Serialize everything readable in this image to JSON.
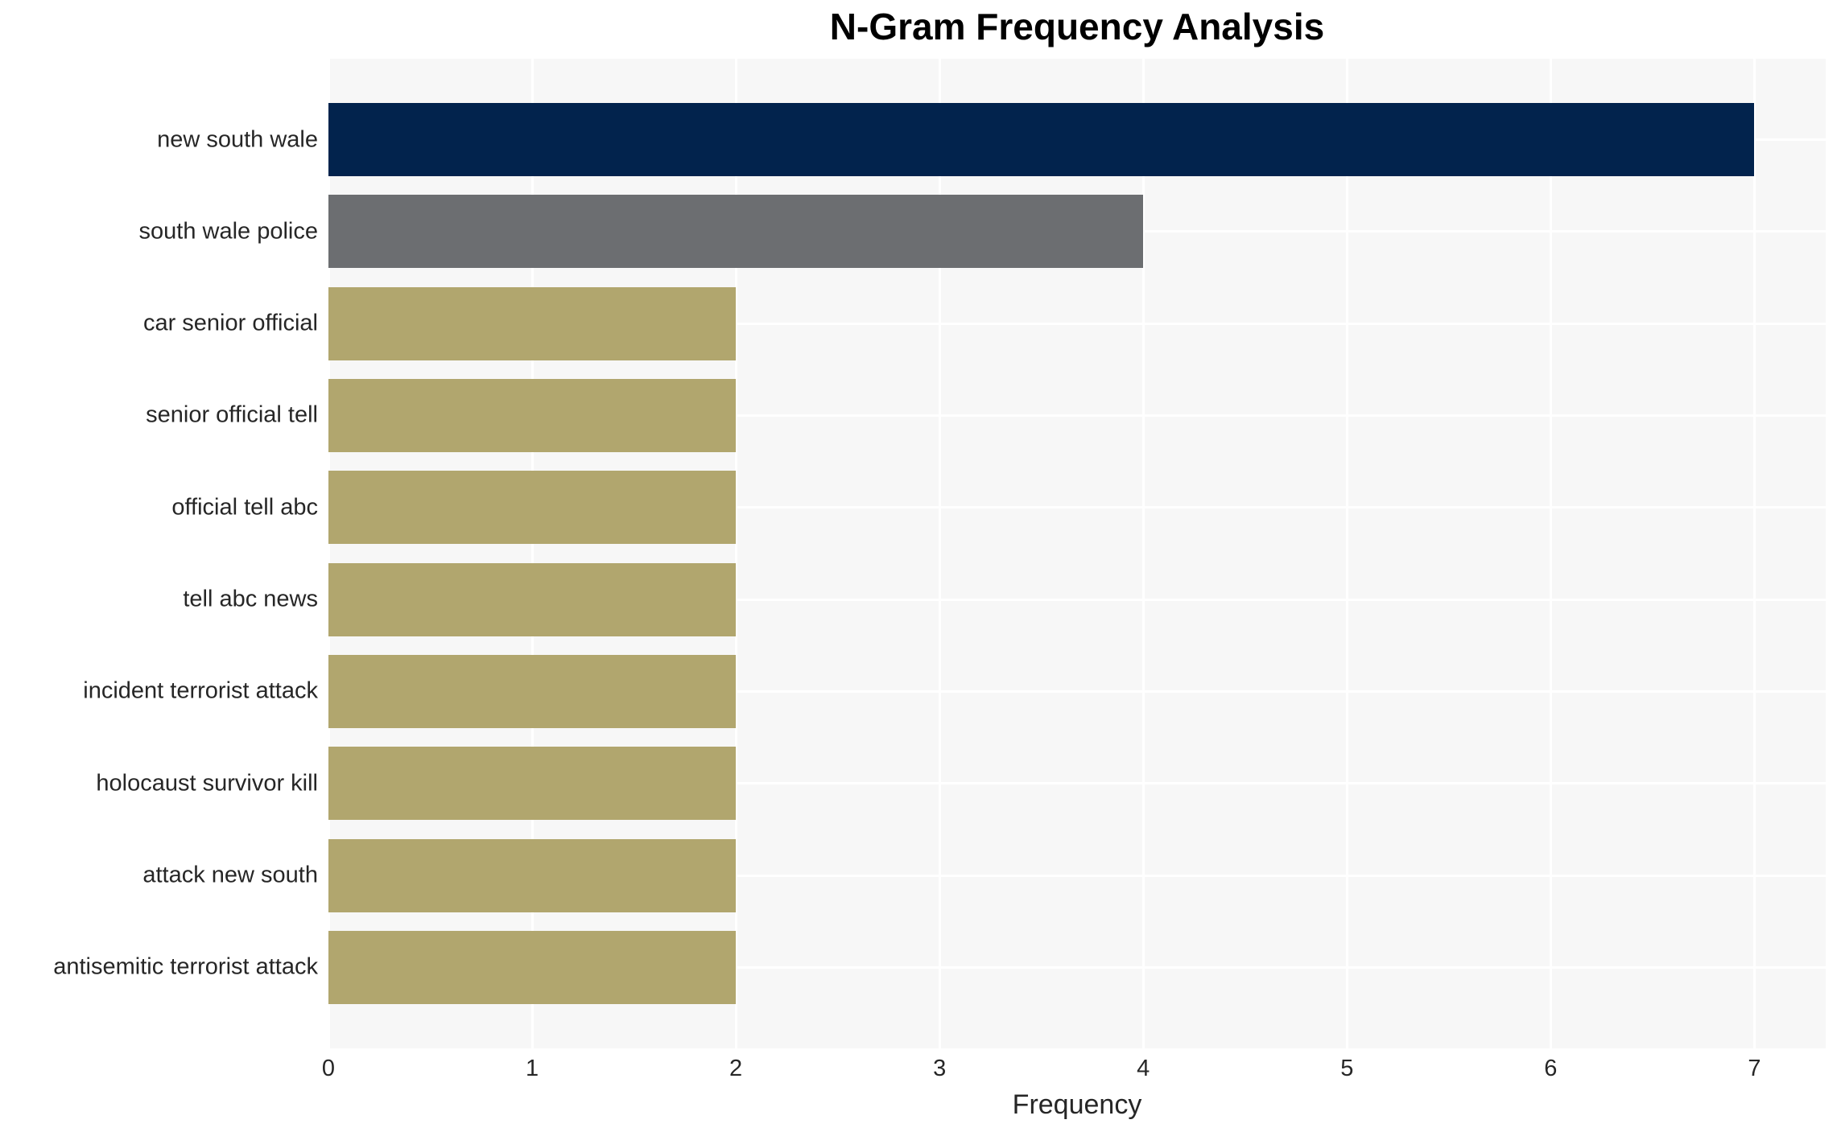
{
  "chart_data": {
    "type": "bar",
    "orientation": "horizontal",
    "title": "N-Gram Frequency Analysis",
    "xlabel": "Frequency",
    "ylabel": "",
    "categories": [
      "new south wale",
      "south wale police",
      "car senior official",
      "senior official tell",
      "official tell abc",
      "tell abc news",
      "incident terrorist attack",
      "holocaust survivor kill",
      "attack new south",
      "antisemitic terrorist attack"
    ],
    "values": [
      7,
      4,
      2,
      2,
      2,
      2,
      2,
      2,
      2,
      2
    ],
    "bar_colors": [
      "#02234d",
      "#6c6e71",
      "#b1a66e",
      "#b1a66e",
      "#b1a66e",
      "#b1a66e",
      "#b1a66e",
      "#b1a66e",
      "#b1a66e",
      "#b1a66e"
    ],
    "x_ticks": [
      0,
      1,
      2,
      3,
      4,
      5,
      6,
      7
    ],
    "xlim": [
      0,
      7.35
    ],
    "grid": "on",
    "legend": "none",
    "colors": {
      "figure_background": "#ffffff",
      "plot_background": "#f7f7f7",
      "grid_line": "#ffffff",
      "text": "#262626",
      "title_text": "#000000"
    }
  }
}
